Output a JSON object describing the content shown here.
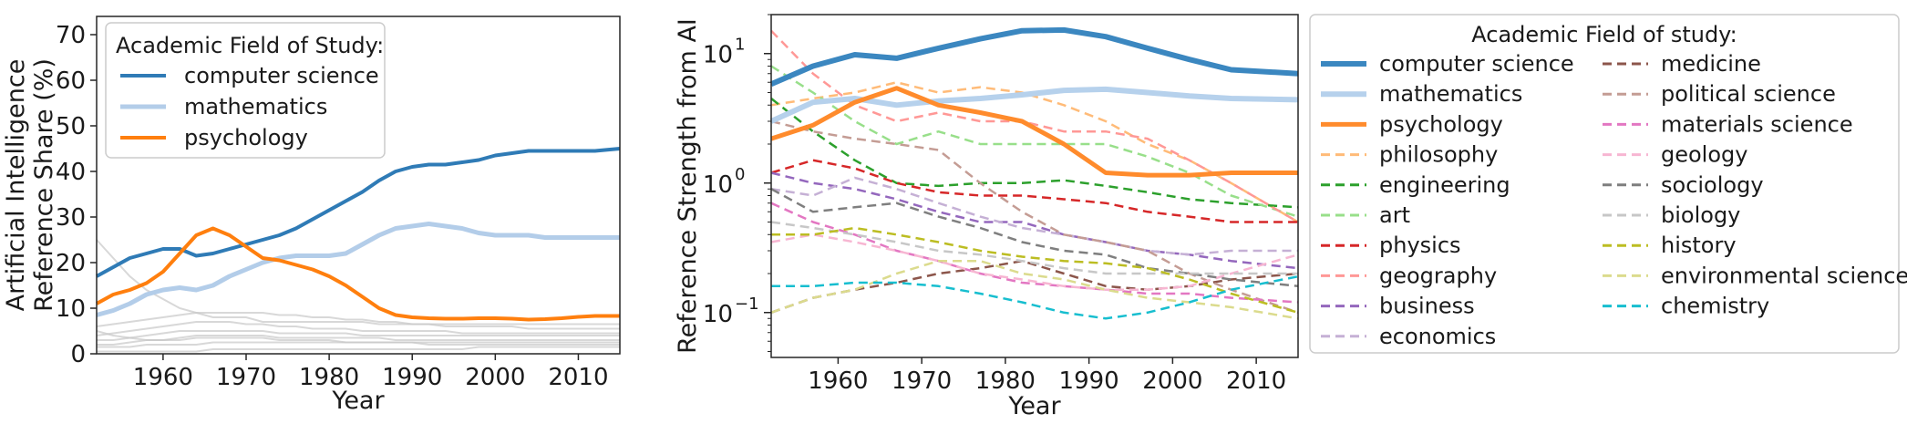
{
  "colors": {
    "computer_science": "#2f7bb6",
    "mathematics": "#b3cde9",
    "psychology": "#ff7f0e",
    "background_lines": "#c8c8c8"
  },
  "chart_data": [
    {
      "type": "line",
      "panel": "left",
      "title": "",
      "xlabel": "Year",
      "ylabel_lines": [
        "Artificial Intelligence",
        "Reference Share (%)"
      ],
      "xlim": [
        1952,
        2015
      ],
      "ylim": [
        0,
        74
      ],
      "xticks": [
        "1960",
        "1970",
        "1980",
        "1990",
        "2000",
        "2010"
      ],
      "yticks": [
        "0",
        "10",
        "20",
        "30",
        "40",
        "50",
        "60",
        "70"
      ],
      "legend_title": "Academic Field of Study:",
      "legend_position": "top-left",
      "x": [
        1952,
        1954,
        1956,
        1958,
        1960,
        1962,
        1964,
        1966,
        1968,
        1970,
        1972,
        1974,
        1976,
        1978,
        1980,
        1982,
        1984,
        1986,
        1988,
        1990,
        1992,
        1994,
        1996,
        1998,
        2000,
        2002,
        2004,
        2006,
        2008,
        2010,
        2012,
        2015
      ],
      "series": [
        {
          "name": "computer science",
          "key": "computer_science",
          "width": 4,
          "values": [
            17,
            19,
            21,
            22,
            23,
            23,
            21.5,
            22,
            23,
            24,
            25,
            26,
            27.5,
            29.5,
            31.5,
            33.5,
            35.5,
            38,
            40,
            41,
            41.5,
            41.5,
            42,
            42.5,
            43.5,
            44,
            44.5,
            44.5,
            44.5,
            44.5,
            44.5,
            45
          ]
        },
        {
          "name": "mathematics",
          "key": "mathematics",
          "width": 5,
          "values": [
            8.5,
            9.5,
            11,
            13,
            14,
            14.5,
            14,
            15,
            17,
            18.5,
            20,
            21,
            21.5,
            21.5,
            21.5,
            22,
            24,
            26,
            27.5,
            28,
            28.5,
            28,
            27.5,
            26.5,
            26,
            26,
            26,
            25.5,
            25.5,
            25.5,
            25.5,
            25.5
          ]
        },
        {
          "name": "psychology",
          "key": "psychology",
          "width": 4,
          "values": [
            11,
            13,
            14,
            15.5,
            18,
            22,
            26,
            27.5,
            26,
            23.5,
            21,
            20.5,
            19.5,
            18.5,
            17,
            15,
            12.5,
            10,
            8.5,
            8,
            7.8,
            7.7,
            7.7,
            7.8,
            7.8,
            7.7,
            7.5,
            7.6,
            7.8,
            8.1,
            8.3,
            8.3
          ]
        }
      ],
      "background_series": [
        {
          "values": [
            25,
            21,
            17,
            14,
            12,
            10,
            9,
            8,
            8,
            8,
            7,
            7,
            7,
            7,
            7,
            7,
            7,
            6.5,
            6.5,
            6.5,
            6.5,
            6.5,
            6.5,
            6.5,
            6.5,
            6.5,
            6.5,
            6.5,
            6.5,
            6.5,
            6.5,
            6.5
          ]
        },
        {
          "values": [
            6,
            6.5,
            7,
            7.5,
            8,
            8.5,
            9,
            9,
            9,
            9,
            9,
            8.5,
            8.5,
            8,
            8,
            7.5,
            7.5,
            7,
            7,
            6.5,
            6.5,
            6,
            6,
            6,
            6,
            6,
            5.5,
            5.5,
            5.5,
            5.5,
            5.5,
            5.5
          ]
        },
        {
          "values": [
            4,
            4.5,
            5,
            5.5,
            6,
            6.5,
            7,
            7,
            7,
            6.5,
            6.5,
            6,
            6,
            5.5,
            5.5,
            5.5,
            5,
            5,
            5,
            5,
            5,
            5,
            4.5,
            4.5,
            4.5,
            4.5,
            4.5,
            4.5,
            4.5,
            4.5,
            4.5,
            4.5
          ]
        },
        {
          "values": [
            3,
            3,
            3.5,
            4,
            4.5,
            5,
            5,
            5,
            5,
            5,
            5,
            4.5,
            4.5,
            4.5,
            4.5,
            4.5,
            4,
            4,
            4,
            4,
            4,
            4,
            4,
            4,
            4,
            4,
            4,
            4,
            4,
            4,
            4,
            4
          ]
        },
        {
          "values": [
            2,
            2,
            2.5,
            3,
            3,
            3.5,
            4,
            4,
            4,
            4,
            4,
            3.5,
            3.5,
            3.5,
            3.5,
            3.5,
            3.5,
            3.5,
            3,
            3,
            3,
            3,
            3,
            3,
            3,
            3,
            3,
            3,
            3,
            3,
            3,
            3
          ]
        },
        {
          "values": [
            1.5,
            1.5,
            1.5,
            2,
            2,
            2,
            2,
            2.5,
            2.5,
            2.5,
            2.5,
            2.5,
            2.5,
            2.5,
            2.5,
            2.5,
            2.5,
            2.5,
            2.5,
            2.5,
            2.5,
            2.5,
            2.5,
            2.5,
            2.5,
            2.5,
            2.5,
            2.5,
            2.5,
            2.5,
            2.5,
            2.5
          ]
        },
        {
          "values": [
            0.5,
            0.5,
            0.5,
            0.5,
            0.5,
            0.5,
            0.5,
            1,
            1,
            1,
            1,
            1,
            1,
            1,
            1,
            1,
            1,
            1,
            1,
            1,
            1,
            1,
            1,
            1.5,
            1.5,
            1.5,
            1.5,
            1.5,
            1.5,
            1.5,
            1.5,
            1.5
          ]
        },
        {
          "values": [
            5,
            4,
            3.5,
            3,
            3,
            3,
            3.5,
            3.5,
            3.5,
            3.5,
            3.5,
            3,
            3,
            3,
            3,
            2.5,
            2.5,
            2.5,
            2.5,
            2.5,
            2,
            2,
            2,
            2,
            2,
            2,
            2,
            2,
            2,
            2,
            2,
            2
          ]
        }
      ]
    },
    {
      "type": "line",
      "panel": "right",
      "scale": "log",
      "title": "",
      "xlabel": "Year",
      "ylabel": "Reference Strength from AI",
      "xlim": [
        1952,
        2015
      ],
      "ylim": [
        0.045,
        20
      ],
      "xticks": [
        "1960",
        "1970",
        "1980",
        "1990",
        "2000",
        "2010"
      ],
      "ytick_labels": [
        {
          "base": "10",
          "exp": "1",
          "value": 10
        },
        {
          "base": "10",
          "exp": "0",
          "value": 1
        },
        {
          "base": "10",
          "exp": "−1",
          "value": 0.1
        }
      ],
      "legend_title": "Academic Field of study:",
      "legend_position": "outside-right",
      "x": [
        1952,
        1957,
        1962,
        1967,
        1972,
        1977,
        1982,
        1987,
        1992,
        1997,
        2002,
        2007,
        2015
      ],
      "series": [
        {
          "name": "computer science",
          "color": "#3b87c0",
          "width": 6,
          "dash": "",
          "values": [
            5.8,
            8,
            9.8,
            9.2,
            11,
            13,
            15,
            15.2,
            13.5,
            11,
            9,
            7.5,
            7
          ]
        },
        {
          "name": "mathematics",
          "color": "#b6d1ec",
          "width": 6,
          "dash": "",
          "values": [
            3,
            4.2,
            4.5,
            4,
            4.3,
            4.5,
            4.8,
            5.2,
            5.3,
            5,
            4.7,
            4.5,
            4.4
          ]
        },
        {
          "name": "psychology",
          "color": "#ff8b2c",
          "width": 5,
          "dash": "",
          "values": [
            2.2,
            2.8,
            4.2,
            5.4,
            4,
            3.5,
            3,
            2,
            1.2,
            1.15,
            1.15,
            1.2,
            1.2
          ]
        },
        {
          "name": "philosophy",
          "color": "#ffbb78",
          "width": 2.5,
          "dash": "10,6",
          "values": [
            4,
            4.5,
            5,
            6,
            5,
            5.5,
            5,
            4,
            3,
            2,
            1.5,
            1,
            0.5
          ]
        },
        {
          "name": "engineering",
          "color": "#2ca02c",
          "width": 2.5,
          "dash": "10,6",
          "values": [
            4.5,
            2.5,
            1.5,
            1,
            0.95,
            1,
            1,
            1.05,
            0.95,
            0.85,
            0.75,
            0.7,
            0.65
          ]
        },
        {
          "name": "art",
          "color": "#98df8a",
          "width": 2.5,
          "dash": "10,6",
          "values": [
            8,
            5,
            3,
            2,
            2.5,
            2,
            2,
            2,
            2,
            1.6,
            1.2,
            0.8,
            0.55
          ]
        },
        {
          "name": "physics",
          "color": "#d62728",
          "width": 2.5,
          "dash": "10,6",
          "values": [
            1.2,
            1.5,
            1.3,
            1,
            0.85,
            0.8,
            0.8,
            0.75,
            0.7,
            0.6,
            0.55,
            0.5,
            0.5
          ]
        },
        {
          "name": "geography",
          "color": "#ff9896",
          "width": 2.5,
          "dash": "10,6",
          "values": [
            15,
            7,
            4,
            3,
            3.5,
            3,
            3,
            2.5,
            2.5,
            2.2,
            1.5,
            1,
            0.5
          ]
        },
        {
          "name": "business",
          "color": "#9467bd",
          "width": 2.5,
          "dash": "10,6",
          "values": [
            1.2,
            1,
            0.9,
            0.75,
            0.6,
            0.5,
            0.5,
            0.4,
            0.35,
            0.3,
            0.28,
            0.25,
            0.22
          ]
        },
        {
          "name": "economics",
          "color": "#c5b0d5",
          "width": 2.5,
          "dash": "10,6",
          "values": [
            0.9,
            0.8,
            1.1,
            0.9,
            0.7,
            0.55,
            0.45,
            0.4,
            0.35,
            0.3,
            0.28,
            0.3,
            0.3
          ]
        },
        {
          "name": "medicine",
          "color": "#8c564b",
          "width": 2.5,
          "dash": "10,6",
          "values": [
            0.1,
            0.13,
            0.15,
            0.17,
            0.2,
            0.22,
            0.25,
            0.2,
            0.16,
            0.15,
            0.16,
            0.18,
            0.2
          ]
        },
        {
          "name": "political science",
          "color": "#c49c94",
          "width": 2.5,
          "dash": "10,6",
          "values": [
            3,
            2.5,
            2.2,
            2,
            1.8,
            1,
            0.6,
            0.4,
            0.35,
            0.3,
            0.2,
            0.15,
            0.1
          ]
        },
        {
          "name": "materials science",
          "color": "#e377c2",
          "width": 2.5,
          "dash": "10,6",
          "values": [
            0.7,
            0.5,
            0.4,
            0.3,
            0.25,
            0.2,
            0.17,
            0.16,
            0.15,
            0.14,
            0.14,
            0.13,
            0.12
          ]
        },
        {
          "name": "geology",
          "color": "#f7b6d2",
          "width": 2.5,
          "dash": "10,6",
          "values": [
            0.35,
            0.4,
            0.35,
            0.3,
            0.25,
            0.2,
            0.18,
            0.16,
            0.15,
            0.15,
            0.16,
            0.2,
            0.28
          ]
        },
        {
          "name": "sociology",
          "color": "#7f7f7f",
          "width": 2.5,
          "dash": "10,6",
          "values": [
            0.9,
            0.6,
            0.65,
            0.7,
            0.55,
            0.45,
            0.35,
            0.3,
            0.28,
            0.22,
            0.2,
            0.18,
            0.16
          ]
        },
        {
          "name": "biology",
          "color": "#c7c7c7",
          "width": 2.5,
          "dash": "10,6",
          "values": [
            0.5,
            0.45,
            0.4,
            0.35,
            0.3,
            0.28,
            0.25,
            0.22,
            0.2,
            0.2,
            0.2,
            0.2,
            0.2
          ]
        },
        {
          "name": "history",
          "color": "#bcbd22",
          "width": 2.5,
          "dash": "10,6",
          "values": [
            0.4,
            0.4,
            0.45,
            0.4,
            0.35,
            0.3,
            0.27,
            0.25,
            0.24,
            0.22,
            0.18,
            0.14,
            0.1
          ]
        },
        {
          "name": "environmental science",
          "color": "#dbdb8d",
          "width": 2.5,
          "dash": "10,6",
          "values": [
            0.1,
            0.13,
            0.15,
            0.2,
            0.25,
            0.25,
            0.2,
            0.18,
            0.15,
            0.13,
            0.12,
            0.11,
            0.09
          ]
        },
        {
          "name": "chemistry",
          "color": "#17becf",
          "width": 2.5,
          "dash": "10,6",
          "values": [
            0.16,
            0.16,
            0.17,
            0.17,
            0.16,
            0.14,
            0.12,
            0.1,
            0.09,
            0.1,
            0.12,
            0.15,
            0.19
          ]
        }
      ]
    }
  ]
}
